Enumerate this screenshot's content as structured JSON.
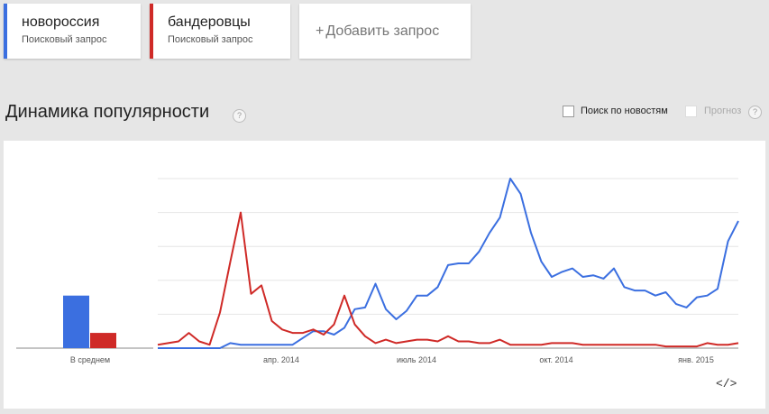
{
  "terms": [
    {
      "name": "новороссия",
      "subtitle": "Поисковый запрос",
      "color": "#3b6fe0"
    },
    {
      "name": "бандеровцы",
      "subtitle": "Поисковый запрос",
      "color": "#cf2a27"
    }
  ],
  "add_query": {
    "plus": "+",
    "label": "Добавить запрос"
  },
  "section": {
    "title": "Динамика популярности",
    "help": "?"
  },
  "options": {
    "news_label": "Поиск по новостям",
    "forecast_label": "Прогноз",
    "help": "?"
  },
  "embed_label": "</>",
  "chart_data": {
    "type": "line",
    "x_tick_labels": [
      "апр. 2014",
      "июль 2014",
      "окт. 2014",
      "янв. 2015"
    ],
    "average_label": "В среднем",
    "average_values": {
      "новороссия": 31,
      "бандеровцы": 9
    },
    "ylim": [
      0,
      100
    ],
    "grid": true,
    "series": [
      {
        "name": "новороссия",
        "color": "#3b6fe0",
        "values": [
          0,
          0,
          0,
          0,
          0,
          0,
          0,
          3,
          2,
          2,
          2,
          2,
          2,
          2,
          6,
          10,
          10,
          8,
          12,
          23,
          24,
          38,
          23,
          17,
          22,
          31,
          31,
          36,
          49,
          50,
          50,
          57,
          68,
          77,
          100,
          91,
          68,
          51,
          42,
          45,
          47,
          42,
          43,
          41,
          47,
          36,
          34,
          34,
          31,
          33,
          26,
          24,
          30,
          31,
          35,
          63,
          75
        ]
      },
      {
        "name": "бандеровцы",
        "color": "#cf2a27",
        "values": [
          2,
          3,
          4,
          9,
          4,
          2,
          21,
          51,
          80,
          32,
          37,
          16,
          11,
          9,
          9,
          11,
          8,
          14,
          31,
          14,
          7,
          3,
          5,
          3,
          4,
          5,
          5,
          4,
          7,
          4,
          4,
          3,
          3,
          5,
          2,
          2,
          2,
          2,
          3,
          3,
          3,
          2,
          2,
          2,
          2,
          2,
          2,
          2,
          2,
          1,
          1,
          1,
          1,
          3,
          2,
          2,
          3
        ]
      }
    ]
  }
}
